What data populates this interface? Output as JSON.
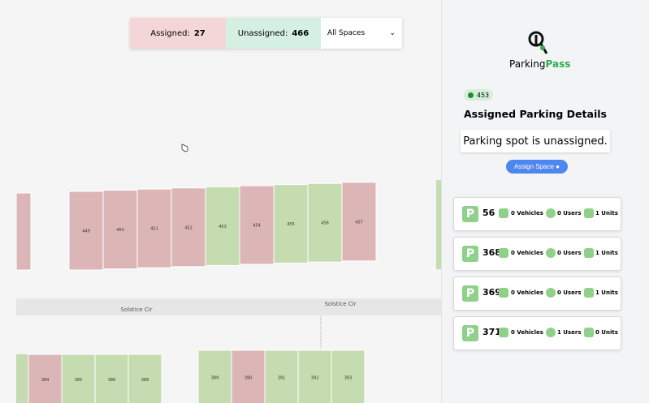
{
  "top_bar": {
    "assigned_label": "Assigned:",
    "assigned_count": "27",
    "unassigned_label": "Unassigned:",
    "unassigned_count": "466",
    "filter": "All Spaces"
  },
  "map": {
    "street_labels": [
      "Solstice Cir",
      "Solstice Cir"
    ],
    "top_row": [
      {
        "label": "449",
        "color": "#dcb6b6"
      },
      {
        "label": "450",
        "color": "#dcb6b6"
      },
      {
        "label": "451",
        "color": "#dcb6b6"
      },
      {
        "label": "452",
        "color": "#dcb6b6"
      },
      {
        "label": "453",
        "color": "#c4dcb0"
      },
      {
        "label": "454",
        "color": "#dcb6b6"
      },
      {
        "label": "455",
        "color": "#c4dcb0"
      },
      {
        "label": "456",
        "color": "#c4dcb0"
      },
      {
        "label": "457",
        "color": "#dcb6b6"
      }
    ],
    "bottom_left": [
      {
        "label": "384",
        "color": "#dcb6b6"
      },
      {
        "label": "385",
        "color": "#c4dcb0"
      },
      {
        "label": "386",
        "color": "#c4dcb0"
      },
      {
        "label": "388",
        "color": "#c4dcb0"
      }
    ],
    "bottom_right": [
      {
        "label": "389",
        "color": "#c4dcb0"
      },
      {
        "label": "390",
        "color": "#dcb6b6"
      },
      {
        "label": "391",
        "color": "#c4dcb0"
      },
      {
        "label": "392",
        "color": "#c4dcb0"
      },
      {
        "label": "393",
        "color": "#c4dcb0"
      }
    ]
  },
  "panel": {
    "logo_dark": "Parking",
    "logo_green": "Pass",
    "badge": "453",
    "title": "Assigned Parking Details",
    "message": "Parking spot is unassigned.",
    "button": "Assign Space",
    "spots": [
      {
        "number": "56",
        "vehicles": "0 Vehicles",
        "users": "0 Users",
        "units": "1 Units"
      },
      {
        "number": "368",
        "vehicles": "0 Vehicles",
        "users": "0 Users",
        "units": "1 Units"
      },
      {
        "number": "369",
        "vehicles": "0 Vehicles",
        "users": "0 Users",
        "units": "1 Units"
      },
      {
        "number": "371",
        "vehicles": "0 Vehicles",
        "users": "1 Users",
        "units": "0 Units"
      }
    ]
  }
}
